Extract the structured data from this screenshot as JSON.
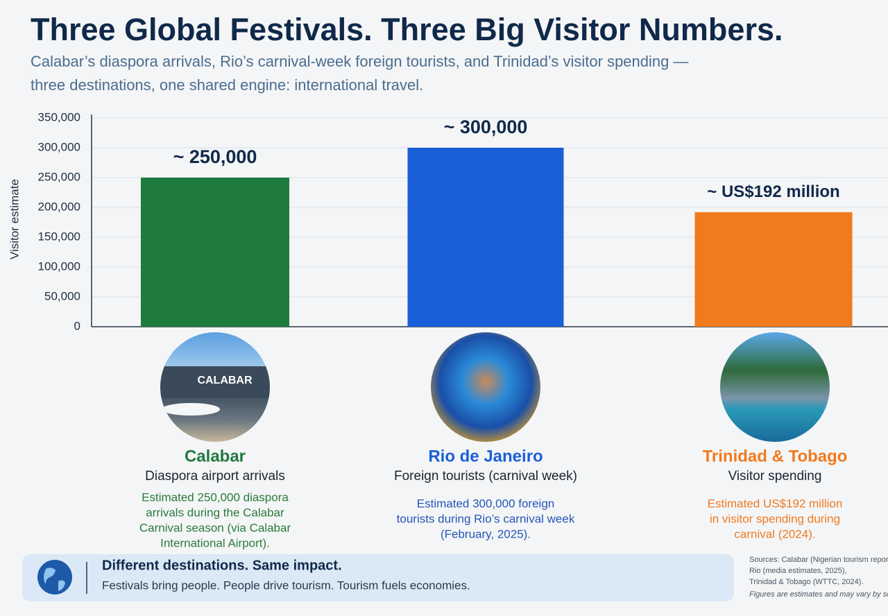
{
  "chart_data": {
    "type": "bar",
    "title": "Three Global Festivals. Three Big Visitor Numbers.",
    "subtitle": [
      "Calabar’s diaspora arrivals, Rio’s carnival-week foreign tourists, and Trinidad’s visitor spending —",
      "three destinations, one shared engine: international travel."
    ],
    "y_label": "Visitor estimate",
    "categories": [
      "Calabar",
      "Rio de Janeiro",
      "Trinidad & Tobago"
    ],
    "values": [
      250000,
      300000,
      192000
    ],
    "value_labels": [
      "~ 250,000",
      "~ 300,000",
      "~ US$192 million"
    ],
    "colors": [
      "#1f7a3e",
      "#1b5fd8",
      "#f07a1e"
    ],
    "ylim": [
      0,
      350000
    ],
    "yticks": [
      0,
      {
        "value": 50000,
        "label": "50,000"
      },
      {
        "value": 100000,
        "label": "100,000"
      },
      {
        "value": 150000,
        "label": "150,000"
      },
      {
        "value": 200000,
        "label": "200,000"
      },
      {
        "value": 250000,
        "label": "250,000"
      },
      {
        "value": 300000,
        "label": "300,000"
      },
      {
        "value": 350000,
        "label": "350,000"
      }
    ],
    "grid": true
  },
  "cards": [
    {
      "subtitle": "Diaspora airport arrivals",
      "photo_label": "CALABAR",
      "description": [
        "Estimated 250,000 diaspora",
        "arrivals during the Calabar",
        "Carnival season (via Calabar",
        "International Airport)."
      ]
    },
    {
      "subtitle": "Foreign tourists (carnival week)",
      "description": [
        "Estimated 300,000 foreign",
        "tourists during Rio’s carnival week",
        "(February, 2025)."
      ]
    },
    {
      "subtitle": "Visitor spending",
      "description": [
        "Estimated US$192 million",
        "in visitor spending during",
        "carnival (2024)."
      ]
    }
  ],
  "banner": {
    "title": "Different destinations. Same impact.",
    "text": "Festivals bring people. People drive tourism. Tourism fuels economies."
  },
  "sources": [
    "Sources: Calabar (Nigerian tourism reports),",
    "Rio (media estimates, 2025),",
    "Trinidad & Tobago (WTTC, 2024).",
    "Figures are estimates and may vary by source."
  ]
}
